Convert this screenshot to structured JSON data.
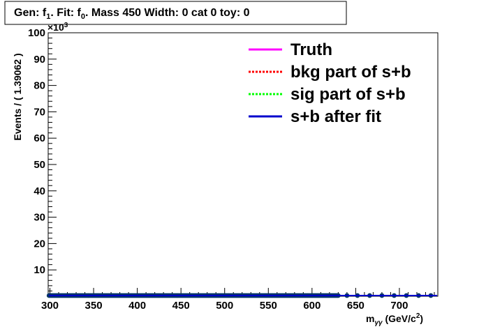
{
  "chart_data": {
    "type": "scatter",
    "title": "Gen: f",
    "title_parts": {
      "gen_prefix": "Gen: f",
      "gen_sub": "1",
      "fit_prefix": ". Fit: f",
      "fit_sub": "0",
      "rest": ". Mass 450  Width: 0 cat 0  toy: 0"
    },
    "xlabel": {
      "prefix": "m",
      "sub": "γγ",
      "unit_prefix": " (GeV/c",
      "unit_sup": "2",
      "unit_suffix": ")"
    },
    "ylabel": "Events / ( 1.39062 )",
    "y_exponent": "×10",
    "y_exponent_power": "3",
    "xlim": [
      298,
      744
    ],
    "ylim": [
      0,
      100
    ],
    "x_ticks": [
      300,
      350,
      400,
      450,
      500,
      550,
      600,
      650,
      700
    ],
    "y_ticks": [
      10,
      20,
      30,
      40,
      50,
      60,
      70,
      80,
      90,
      100
    ],
    "grid": false,
    "legend_position": "top-right",
    "series": [
      {
        "name": "Truth",
        "style": "solid",
        "color": "#ff00ff",
        "values": [
          0,
          0
        ]
      },
      {
        "name": "bkg part of s+b",
        "style": "dotted",
        "color": "#ff0000",
        "values": [
          0,
          0
        ]
      },
      {
        "name": "sig part of s+b",
        "style": "dotted",
        "color": "#00ff00",
        "values": [
          0,
          0
        ]
      },
      {
        "name": "s+b after fit",
        "style": "solid",
        "color": "#0000cc",
        "values": [
          0,
          0
        ]
      }
    ],
    "data_points": {
      "x_dense_start": 299,
      "x_dense_end": 630,
      "x_dense_step": 1.39062,
      "x_sparse": [
        640,
        652,
        666,
        680,
        694,
        708,
        722,
        736
      ],
      "y": 0,
      "color": "#003366"
    }
  }
}
